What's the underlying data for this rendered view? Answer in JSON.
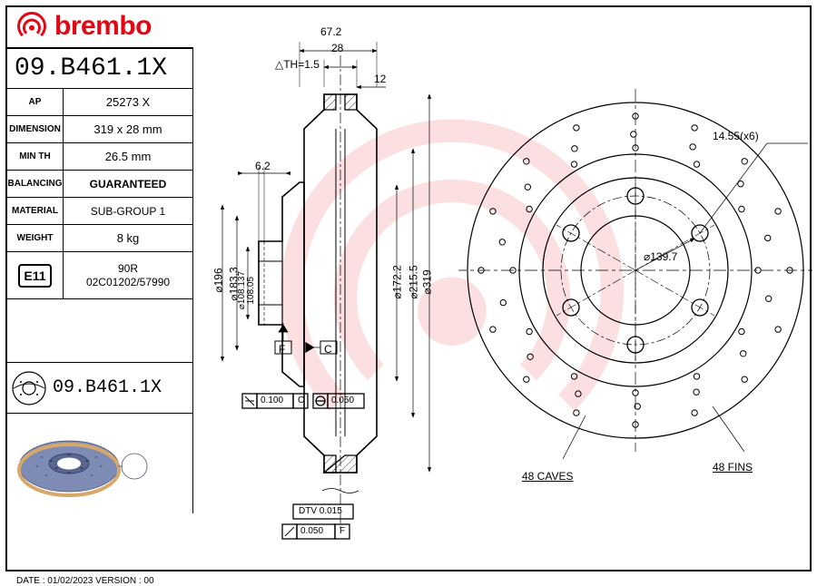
{
  "brand": {
    "name": "brembo",
    "color": "#e30613"
  },
  "part_number": "09.B461.1X",
  "table": {
    "ap_label": "AP",
    "ap_value": "25273 X",
    "dim_label": "DIMENSION",
    "dim_value": "319 x 28 mm",
    "min_label": "MIN TH",
    "min_value": "26.5 mm",
    "bal_label": "BALANCING",
    "bal_value": "GUARANTEED",
    "mat_label": "MATERIAL",
    "mat_value": "SUB-GROUP 1",
    "wt_label": "WEIGHT",
    "wt_value": "8 kg",
    "e11": "E11",
    "e11_value_1": "90R",
    "e11_value_2": "02C01202/57990"
  },
  "part_number2": "09.B461.1X",
  "cross_section": {
    "total_width": 67.2,
    "rotor_th": 28,
    "th_range": "△TH=1.5",
    "chamfer": 12,
    "flange_th": 6.2,
    "d1": 196,
    "d2": 183.3,
    "d3": 172.2,
    "d4": 215.5,
    "d5": 319,
    "d6a": 108.137,
    "d6b": 108.05,
    "labels": {
      "F": "F",
      "C": "C"
    },
    "tol1": "0.100",
    "tol1_ref": "C",
    "tol2": "0.050",
    "dtv": "DTV 0.015",
    "tol3": "0.050",
    "tol3_ref": "F",
    "tol4": ""
  },
  "front_view": {
    "outer_d": 319,
    "bolt_circle": 139.7,
    "bore_d": 108,
    "bolt": "14.55(x6)",
    "caves": "48 CAVES",
    "fins": "48 FINS"
  },
  "footer": "DATE : 01/02/2023 VERSION : 00",
  "colors": {
    "line": "#000000",
    "bg": "#ffffff",
    "render_disc": "#7e8bb5",
    "render_edge": "#d6a96b"
  }
}
